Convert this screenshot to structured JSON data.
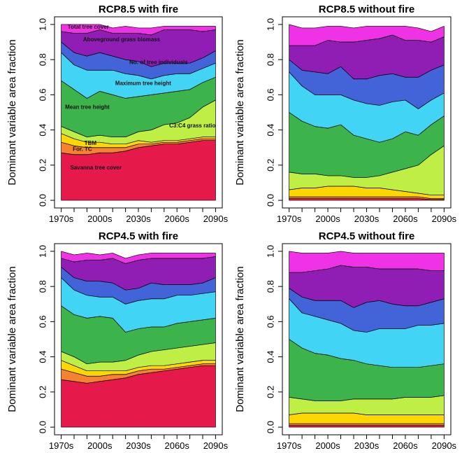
{
  "colors": {
    "Savanna tree cover": "#e6194b",
    "For. TC": "#f58231",
    "TBM": "#ffd700",
    "C3:C4 grass ratio": "#bfef45",
    "Mean tree height": "#3cb44b",
    "Maximum tree height": "#42d4f4",
    "No. of tree individuals": "#4363d8",
    "Aboveground grass biomass": "#911eb4",
    "Total tree cover": "#f032e6"
  },
  "layer_order": [
    "Savanna tree cover",
    "For. TC",
    "TBM",
    "C3:C4 grass ratio",
    "Mean tree height",
    "Maximum tree height",
    "No. of tree individuals",
    "Aboveground grass biomass",
    "Total tree cover"
  ],
  "chart_data": [
    {
      "type": "area",
      "title": "RCP8.5 with fire",
      "ylabel": "Dominant variable area fraction",
      "xlabel": "",
      "ylim": [
        0,
        1
      ],
      "yticks": [
        "0.0",
        "0.2",
        "0.4",
        "0.6",
        "0.8",
        "1.0"
      ],
      "xticks": [
        "1970s",
        "2000s",
        "2030s",
        "2060s",
        "2090s"
      ],
      "x": [
        1970,
        1980,
        1990,
        2000,
        2010,
        2020,
        2030,
        2040,
        2050,
        2060,
        2070,
        2080,
        2090
      ],
      "annotations": [
        "Total tree cover",
        "Aboveground grass biomass",
        "No. of tree individuals",
        "Maximum tree height",
        "Mean tree height",
        "C3:C4 grass ratio",
        "TBM",
        "For. TC",
        "Savanna tree cover"
      ],
      "series": [
        {
          "name": "Savanna tree cover",
          "values": [
            0.27,
            0.26,
            0.26,
            0.27,
            0.27,
            0.28,
            0.3,
            0.31,
            0.32,
            0.32,
            0.33,
            0.34,
            0.34
          ]
        },
        {
          "name": "For. TC",
          "values": [
            0.06,
            0.05,
            0.04,
            0.03,
            0.03,
            0.02,
            0.02,
            0.01,
            0.01,
            0.01,
            0.01,
            0.01,
            0.01
          ]
        },
        {
          "name": "TBM",
          "values": [
            0.05,
            0.04,
            0.03,
            0.03,
            0.02,
            0.02,
            0.02,
            0.01,
            0.01,
            0.01,
            0.01,
            0.01,
            0.01
          ]
        },
        {
          "name": "C3:C4 grass ratio",
          "values": [
            0.04,
            0.04,
            0.03,
            0.04,
            0.04,
            0.04,
            0.05,
            0.07,
            0.09,
            0.1,
            0.12,
            0.17,
            0.21
          ]
        },
        {
          "name": "Mean tree height",
          "values": [
            0.26,
            0.24,
            0.22,
            0.25,
            0.24,
            0.22,
            0.2,
            0.2,
            0.18,
            0.18,
            0.16,
            0.14,
            0.13
          ]
        },
        {
          "name": "Maximum tree height",
          "values": [
            0.16,
            0.14,
            0.16,
            0.12,
            0.14,
            0.14,
            0.12,
            0.09,
            0.1,
            0.1,
            0.09,
            0.08,
            0.08
          ]
        },
        {
          "name": "No. of tree individuals",
          "values": [
            0.06,
            0.07,
            0.08,
            0.1,
            0.08,
            0.08,
            0.08,
            0.07,
            0.07,
            0.06,
            0.06,
            0.06,
            0.07
          ]
        },
        {
          "name": "Aboveground grass biomass",
          "values": [
            0.06,
            0.11,
            0.13,
            0.13,
            0.13,
            0.15,
            0.16,
            0.18,
            0.19,
            0.19,
            0.19,
            0.15,
            0.12
          ]
        },
        {
          "name": "Total tree cover",
          "values": [
            0.04,
            0.05,
            0.05,
            0.03,
            0.03,
            0.04,
            0.03,
            0.04,
            0.02,
            0.02,
            0.02,
            0.03,
            0.02
          ]
        }
      ]
    },
    {
      "type": "area",
      "title": "RCP8.5 without fire",
      "ylabel": "Dominant variable area fraction",
      "xlabel": "",
      "ylim": [
        0,
        1
      ],
      "yticks": [
        "0.0",
        "0.2",
        "0.4",
        "0.6",
        "0.8",
        "1.0"
      ],
      "xticks": [
        "1970s",
        "2000s",
        "2030s",
        "2060s",
        "2090s"
      ],
      "x": [
        1970,
        1980,
        1990,
        2000,
        2010,
        2020,
        2030,
        2040,
        2050,
        2060,
        2070,
        2080,
        2090
      ],
      "series": [
        {
          "name": "Savanna tree cover",
          "values": [
            0.01,
            0.01,
            0.01,
            0.01,
            0.01,
            0.01,
            0.01,
            0.01,
            0.01,
            0.01,
            0.01,
            0.005,
            0.005
          ]
        },
        {
          "name": "For. TC",
          "values": [
            0.01,
            0.01,
            0.01,
            0.01,
            0.01,
            0.01,
            0.01,
            0.01,
            0.01,
            0.01,
            0.01,
            0.005,
            0.005
          ]
        },
        {
          "name": "TBM",
          "values": [
            0.04,
            0.05,
            0.05,
            0.06,
            0.06,
            0.06,
            0.05,
            0.05,
            0.04,
            0.03,
            0.02,
            0.02,
            0.02
          ]
        },
        {
          "name": "C3:C4 grass ratio",
          "values": [
            0.1,
            0.08,
            0.08,
            0.06,
            0.06,
            0.05,
            0.06,
            0.07,
            0.1,
            0.13,
            0.16,
            0.23,
            0.28
          ]
        },
        {
          "name": "Mean tree height",
          "values": [
            0.34,
            0.3,
            0.27,
            0.27,
            0.29,
            0.24,
            0.22,
            0.19,
            0.19,
            0.21,
            0.17,
            0.17,
            0.17
          ]
        },
        {
          "name": "Maximum tree height",
          "values": [
            0.23,
            0.2,
            0.18,
            0.19,
            0.17,
            0.2,
            0.2,
            0.21,
            0.21,
            0.18,
            0.15,
            0.14,
            0.13
          ]
        },
        {
          "name": "No. of tree individuals",
          "values": [
            0.07,
            0.09,
            0.13,
            0.12,
            0.16,
            0.12,
            0.14,
            0.17,
            0.16,
            0.13,
            0.18,
            0.17,
            0.16
          ]
        },
        {
          "name": "Aboveground grass biomass",
          "values": [
            0.08,
            0.14,
            0.15,
            0.19,
            0.14,
            0.21,
            0.22,
            0.21,
            0.22,
            0.21,
            0.21,
            0.16,
            0.16
          ]
        },
        {
          "name": "Total tree cover",
          "values": [
            0.12,
            0.1,
            0.1,
            0.08,
            0.09,
            0.08,
            0.08,
            0.07,
            0.05,
            0.08,
            0.07,
            0.06,
            0.06
          ]
        }
      ]
    },
    {
      "type": "area",
      "title": "RCP4.5 with fire",
      "ylabel": "Dominant variable area fraction",
      "xlabel": "",
      "ylim": [
        0,
        1
      ],
      "yticks": [
        "0.0",
        "0.2",
        "0.4",
        "0.6",
        "0.8",
        "1.0"
      ],
      "xticks": [
        "1970s",
        "2000s",
        "2030s",
        "2060s",
        "2090s"
      ],
      "x": [
        1970,
        1980,
        1990,
        2000,
        2010,
        2020,
        2030,
        2040,
        2050,
        2060,
        2070,
        2080,
        2090
      ],
      "series": [
        {
          "name": "Savanna tree cover",
          "values": [
            0.27,
            0.26,
            0.25,
            0.26,
            0.27,
            0.28,
            0.3,
            0.31,
            0.32,
            0.33,
            0.34,
            0.35,
            0.35
          ]
        },
        {
          "name": "For. TC",
          "values": [
            0.06,
            0.05,
            0.04,
            0.03,
            0.03,
            0.02,
            0.02,
            0.02,
            0.01,
            0.01,
            0.01,
            0.01,
            0.01
          ]
        },
        {
          "name": "TBM",
          "values": [
            0.05,
            0.04,
            0.03,
            0.03,
            0.02,
            0.02,
            0.02,
            0.02,
            0.02,
            0.02,
            0.02,
            0.02,
            0.02
          ]
        },
        {
          "name": "C3:C4 grass ratio",
          "values": [
            0.05,
            0.05,
            0.04,
            0.05,
            0.05,
            0.06,
            0.07,
            0.08,
            0.09,
            0.09,
            0.09,
            0.09,
            0.1
          ]
        },
        {
          "name": "Mean tree height",
          "values": [
            0.26,
            0.24,
            0.26,
            0.26,
            0.25,
            0.16,
            0.15,
            0.14,
            0.13,
            0.14,
            0.14,
            0.14,
            0.14
          ]
        },
        {
          "name": "Maximum tree height",
          "values": [
            0.16,
            0.14,
            0.13,
            0.11,
            0.12,
            0.16,
            0.16,
            0.16,
            0.16,
            0.16,
            0.15,
            0.15,
            0.15
          ]
        },
        {
          "name": "No. of tree individuals",
          "values": [
            0.06,
            0.07,
            0.08,
            0.09,
            0.08,
            0.08,
            0.07,
            0.09,
            0.08,
            0.06,
            0.06,
            0.06,
            0.08
          ]
        },
        {
          "name": "Aboveground grass biomass",
          "values": [
            0.05,
            0.09,
            0.12,
            0.12,
            0.14,
            0.15,
            0.16,
            0.14,
            0.15,
            0.15,
            0.15,
            0.14,
            0.12
          ]
        },
        {
          "name": "Total tree cover",
          "values": [
            0.04,
            0.04,
            0.04,
            0.03,
            0.03,
            0.03,
            0.03,
            0.03,
            0.03,
            0.03,
            0.03,
            0.03,
            0.02
          ]
        }
      ]
    },
    {
      "type": "area",
      "title": "RCP4.5 without fire",
      "ylabel": "Dominant variable area fraction",
      "xlabel": "",
      "ylim": [
        0,
        1
      ],
      "yticks": [
        "0.0",
        "0.2",
        "0.4",
        "0.6",
        "0.8",
        "1.0"
      ],
      "xticks": [
        "1970s",
        "2000s",
        "2030s",
        "2060s",
        "2090s"
      ],
      "x": [
        1970,
        1980,
        1990,
        2000,
        2010,
        2020,
        2030,
        2040,
        2050,
        2060,
        2070,
        2080,
        2090
      ],
      "series": [
        {
          "name": "Savanna tree cover",
          "values": [
            0.01,
            0.01,
            0.01,
            0.01,
            0.01,
            0.01,
            0.01,
            0.01,
            0.01,
            0.01,
            0.01,
            0.01,
            0.01
          ]
        },
        {
          "name": "For. TC",
          "values": [
            0.01,
            0.01,
            0.01,
            0.01,
            0.01,
            0.01,
            0.01,
            0.01,
            0.01,
            0.01,
            0.01,
            0.01,
            0.01
          ]
        },
        {
          "name": "TBM",
          "values": [
            0.05,
            0.06,
            0.06,
            0.06,
            0.06,
            0.06,
            0.05,
            0.05,
            0.05,
            0.05,
            0.05,
            0.05,
            0.05
          ]
        },
        {
          "name": "C3:C4 grass ratio",
          "values": [
            0.1,
            0.08,
            0.07,
            0.07,
            0.07,
            0.08,
            0.09,
            0.09,
            0.09,
            0.1,
            0.1,
            0.1,
            0.11
          ]
        },
        {
          "name": "Mean tree height",
          "values": [
            0.33,
            0.29,
            0.27,
            0.26,
            0.24,
            0.22,
            0.2,
            0.19,
            0.18,
            0.17,
            0.17,
            0.18,
            0.18
          ]
        },
        {
          "name": "Maximum tree height",
          "values": [
            0.23,
            0.2,
            0.21,
            0.2,
            0.2,
            0.17,
            0.18,
            0.21,
            0.22,
            0.22,
            0.24,
            0.23,
            0.23
          ]
        },
        {
          "name": "No. of tree individuals",
          "values": [
            0.06,
            0.09,
            0.09,
            0.11,
            0.13,
            0.13,
            0.17,
            0.16,
            0.14,
            0.13,
            0.11,
            0.13,
            0.14
          ]
        },
        {
          "name": "Aboveground grass biomass",
          "values": [
            0.09,
            0.14,
            0.17,
            0.18,
            0.2,
            0.23,
            0.2,
            0.18,
            0.2,
            0.21,
            0.21,
            0.18,
            0.16
          ]
        },
        {
          "name": "Total tree cover",
          "values": [
            0.12,
            0.11,
            0.1,
            0.09,
            0.08,
            0.08,
            0.08,
            0.09,
            0.09,
            0.09,
            0.09,
            0.1,
            0.1
          ]
        }
      ]
    }
  ]
}
